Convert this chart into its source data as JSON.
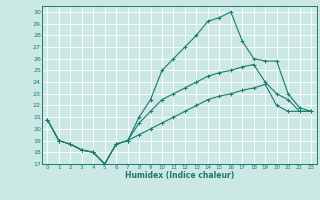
{
  "xlabel": "Humidex (Indice chaleur)",
  "xlim": [
    -0.5,
    23.5
  ],
  "ylim": [
    17,
    30.5
  ],
  "yticks": [
    17,
    18,
    19,
    20,
    21,
    22,
    23,
    24,
    25,
    26,
    27,
    28,
    29,
    30
  ],
  "xticks": [
    0,
    1,
    2,
    3,
    4,
    5,
    6,
    7,
    8,
    9,
    10,
    11,
    12,
    13,
    14,
    15,
    16,
    17,
    18,
    19,
    20,
    21,
    22,
    23
  ],
  "bg_color": "#cce8e5",
  "line_color": "#1a7a6e",
  "grid_color": "#ffffff",
  "lines": [
    {
      "x": [
        0,
        1,
        2,
        3,
        4,
        5,
        6,
        7,
        8,
        9,
        10,
        11,
        12,
        13,
        14,
        15,
        16,
        17,
        18,
        19,
        20,
        21,
        22,
        23
      ],
      "y": [
        20.8,
        19.0,
        18.7,
        18.2,
        18.0,
        17.0,
        18.7,
        19.0,
        21.0,
        22.5,
        25.0,
        26.0,
        27.0,
        28.0,
        29.2,
        29.5,
        30.0,
        27.5,
        26.0,
        25.8,
        25.8,
        23.0,
        21.8,
        21.5
      ]
    },
    {
      "x": [
        0,
        1,
        2,
        3,
        4,
        5,
        6,
        7,
        8,
        9,
        10,
        11,
        12,
        13,
        14,
        15,
        16,
        17,
        18,
        19,
        20,
        21,
        22,
        23
      ],
      "y": [
        20.8,
        19.0,
        18.7,
        18.2,
        18.0,
        17.0,
        18.7,
        19.0,
        20.5,
        21.5,
        22.5,
        23.0,
        23.5,
        24.0,
        24.5,
        24.8,
        25.0,
        25.3,
        25.5,
        24.0,
        23.0,
        22.5,
        21.5,
        21.5
      ]
    },
    {
      "x": [
        0,
        1,
        2,
        3,
        4,
        5,
        6,
        7,
        8,
        9,
        10,
        11,
        12,
        13,
        14,
        15,
        16,
        17,
        18,
        19,
        20,
        21,
        22,
        23
      ],
      "y": [
        20.8,
        19.0,
        18.7,
        18.2,
        18.0,
        17.0,
        18.7,
        19.0,
        19.5,
        20.0,
        20.5,
        21.0,
        21.5,
        22.0,
        22.5,
        22.8,
        23.0,
        23.3,
        23.5,
        23.8,
        22.0,
        21.5,
        21.5,
        21.5
      ]
    }
  ]
}
